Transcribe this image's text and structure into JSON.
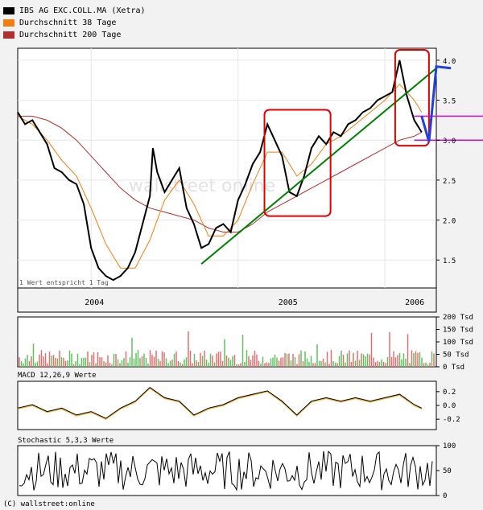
{
  "legend": [
    {
      "label": "IBS AG EXC.COLL.MA (Xetra)",
      "color": "#000000"
    },
    {
      "label": "Durchschnitt 38 Tage",
      "color": "#f07f10"
    },
    {
      "label": "Durchschnitt 200 Tage",
      "color": "#b03030"
    }
  ],
  "main_note": "1 Wert entspricht 1 Tag",
  "watermark": "wallstreet online",
  "footer": "(C) wallstreet:online",
  "volume_ticks": [
    "200 Tsd",
    "150 Tsd",
    "100 Tsd",
    "50 Tsd",
    "0 Tsd"
  ],
  "macd_label": "MACD 12,26,9 Werte",
  "stoch_label": "Stochastic 5,3,3 Werte",
  "colors": {
    "price": "#000000",
    "ma38": "#f07f10",
    "ma200": "#b03030",
    "trend": "#008000",
    "box": "#e00000",
    "forecast": "#2040e0",
    "hline": "#e000e0",
    "vol_up": "#60c060",
    "vol_down": "#e07070"
  },
  "chart_data": {
    "type": "line",
    "price": {
      "ylim": [
        1.15,
        4.15
      ],
      "yticks": [
        1.5,
        2.0,
        2.5,
        3.0,
        3.5,
        4.0
      ],
      "ytick_labels": [
        "1.5",
        "2.0",
        "2.5",
        "3.0",
        "3.5",
        "4.0"
      ],
      "xtick_labels": [
        "2004",
        "2005",
        "2006"
      ],
      "t_range": [
        2003.5,
        2006.35
      ],
      "xticks": [
        2004.0,
        2005.0,
        2006.0
      ],
      "series_close": [
        [
          2003.5,
          3.35
        ],
        [
          2003.55,
          3.2
        ],
        [
          2003.6,
          3.25
        ],
        [
          2003.65,
          3.1
        ],
        [
          2003.7,
          2.95
        ],
        [
          2003.75,
          2.65
        ],
        [
          2003.8,
          2.6
        ],
        [
          2003.85,
          2.5
        ],
        [
          2003.9,
          2.45
        ],
        [
          2003.95,
          2.2
        ],
        [
          2004.0,
          1.65
        ],
        [
          2004.05,
          1.4
        ],
        [
          2004.1,
          1.3
        ],
        [
          2004.15,
          1.25
        ],
        [
          2004.2,
          1.3
        ],
        [
          2004.25,
          1.4
        ],
        [
          2004.3,
          1.6
        ],
        [
          2004.35,
          1.95
        ],
        [
          2004.4,
          2.3
        ],
        [
          2004.42,
          2.9
        ],
        [
          2004.45,
          2.6
        ],
        [
          2004.5,
          2.35
        ],
        [
          2004.55,
          2.5
        ],
        [
          2004.6,
          2.65
        ],
        [
          2004.65,
          2.15
        ],
        [
          2004.7,
          1.95
        ],
        [
          2004.75,
          1.65
        ],
        [
          2004.8,
          1.7
        ],
        [
          2004.85,
          1.9
        ],
        [
          2004.9,
          1.95
        ],
        [
          2004.95,
          1.85
        ],
        [
          2005.0,
          2.25
        ],
        [
          2005.05,
          2.45
        ],
        [
          2005.1,
          2.7
        ],
        [
          2005.15,
          2.85
        ],
        [
          2005.2,
          3.2
        ],
        [
          2005.25,
          3.0
        ],
        [
          2005.3,
          2.8
        ],
        [
          2005.35,
          2.35
        ],
        [
          2005.4,
          2.3
        ],
        [
          2005.45,
          2.55
        ],
        [
          2005.5,
          2.9
        ],
        [
          2005.55,
          3.05
        ],
        [
          2005.6,
          2.95
        ],
        [
          2005.65,
          3.1
        ],
        [
          2005.7,
          3.05
        ],
        [
          2005.75,
          3.2
        ],
        [
          2005.8,
          3.25
        ],
        [
          2005.85,
          3.35
        ],
        [
          2005.9,
          3.4
        ],
        [
          2005.95,
          3.5
        ],
        [
          2006.0,
          3.55
        ],
        [
          2006.05,
          3.6
        ],
        [
          2006.1,
          4.0
        ],
        [
          2006.15,
          3.55
        ],
        [
          2006.2,
          3.25
        ],
        [
          2006.25,
          3.1
        ]
      ],
      "series_ma38": [
        [
          2003.5,
          3.3
        ],
        [
          2003.6,
          3.2
        ],
        [
          2003.7,
          3.0
        ],
        [
          2003.8,
          2.75
        ],
        [
          2003.9,
          2.55
        ],
        [
          2004.0,
          2.15
        ],
        [
          2004.1,
          1.7
        ],
        [
          2004.2,
          1.4
        ],
        [
          2004.3,
          1.4
        ],
        [
          2004.4,
          1.75
        ],
        [
          2004.5,
          2.25
        ],
        [
          2004.6,
          2.5
        ],
        [
          2004.7,
          2.2
        ],
        [
          2004.8,
          1.8
        ],
        [
          2004.9,
          1.8
        ],
        [
          2005.0,
          2.0
        ],
        [
          2005.1,
          2.45
        ],
        [
          2005.2,
          2.85
        ],
        [
          2005.3,
          2.85
        ],
        [
          2005.4,
          2.55
        ],
        [
          2005.5,
          2.7
        ],
        [
          2005.6,
          2.95
        ],
        [
          2005.7,
          3.05
        ],
        [
          2005.8,
          3.2
        ],
        [
          2005.9,
          3.35
        ],
        [
          2006.0,
          3.5
        ],
        [
          2006.1,
          3.7
        ],
        [
          2006.2,
          3.5
        ],
        [
          2006.25,
          3.35
        ]
      ],
      "series_ma200": [
        [
          2003.5,
          3.3
        ],
        [
          2003.6,
          3.3
        ],
        [
          2003.7,
          3.25
        ],
        [
          2003.8,
          3.15
        ],
        [
          2003.9,
          3.0
        ],
        [
          2004.0,
          2.8
        ],
        [
          2004.1,
          2.6
        ],
        [
          2004.2,
          2.4
        ],
        [
          2004.3,
          2.25
        ],
        [
          2004.4,
          2.15
        ],
        [
          2004.5,
          2.1
        ],
        [
          2004.6,
          2.05
        ],
        [
          2004.7,
          2.0
        ],
        [
          2004.8,
          1.9
        ],
        [
          2004.9,
          1.85
        ],
        [
          2005.0,
          1.85
        ],
        [
          2005.1,
          1.95
        ],
        [
          2005.2,
          2.1
        ],
        [
          2005.3,
          2.2
        ],
        [
          2005.4,
          2.3
        ],
        [
          2005.5,
          2.4
        ],
        [
          2005.6,
          2.5
        ],
        [
          2005.7,
          2.6
        ],
        [
          2005.8,
          2.7
        ],
        [
          2005.9,
          2.8
        ],
        [
          2006.0,
          2.9
        ],
        [
          2006.1,
          3.0
        ],
        [
          2006.2,
          3.05
        ],
        [
          2006.25,
          3.1
        ]
      ],
      "trendline": [
        [
          2004.75,
          1.45
        ],
        [
          2006.35,
          3.9
        ]
      ],
      "forecast_path": [
        [
          2006.25,
          3.3
        ],
        [
          2006.3,
          2.98
        ],
        [
          2006.35,
          3.92
        ],
        [
          2006.45,
          3.9
        ]
      ],
      "hlines": [
        3.3,
        3.0
      ],
      "boxes": [
        {
          "t0": 2005.18,
          "t1": 2005.63,
          "v0": 2.05,
          "v1": 3.38
        },
        {
          "t0": 2006.07,
          "t1": 2006.3,
          "v0": 2.93,
          "v1": 4.13
        }
      ]
    },
    "volume": {
      "ylim": [
        0,
        200
      ],
      "yticks": [
        0,
        50,
        100,
        150,
        200
      ]
    },
    "macd": {
      "ylim": [
        -0.35,
        0.35
      ],
      "yticks": [
        0.2,
        0.0,
        -0.2
      ],
      "ytick_labels": [
        "0.2",
        "0.0",
        "-0.2"
      ],
      "series": [
        [
          2003.5,
          -0.05
        ],
        [
          2003.6,
          0.0
        ],
        [
          2003.7,
          -0.1
        ],
        [
          2003.8,
          -0.05
        ],
        [
          2003.9,
          -0.15
        ],
        [
          2004.0,
          -0.1
        ],
        [
          2004.1,
          -0.2
        ],
        [
          2004.2,
          -0.05
        ],
        [
          2004.3,
          0.05
        ],
        [
          2004.4,
          0.25
        ],
        [
          2004.5,
          0.1
        ],
        [
          2004.6,
          0.05
        ],
        [
          2004.7,
          -0.15
        ],
        [
          2004.8,
          -0.05
        ],
        [
          2004.9,
          0.0
        ],
        [
          2005.0,
          0.1
        ],
        [
          2005.1,
          0.15
        ],
        [
          2005.2,
          0.2
        ],
        [
          2005.3,
          0.05
        ],
        [
          2005.4,
          -0.15
        ],
        [
          2005.5,
          0.05
        ],
        [
          2005.6,
          0.1
        ],
        [
          2005.7,
          0.05
        ],
        [
          2005.8,
          0.1
        ],
        [
          2005.9,
          0.05
        ],
        [
          2006.0,
          0.1
        ],
        [
          2006.1,
          0.15
        ],
        [
          2006.2,
          0.0
        ],
        [
          2006.25,
          -0.05
        ]
      ]
    },
    "stochastic": {
      "ylim": [
        0,
        100
      ],
      "yticks": [
        100,
        50,
        0
      ],
      "ytick_labels": [
        "100",
        "50",
        "0"
      ]
    }
  }
}
